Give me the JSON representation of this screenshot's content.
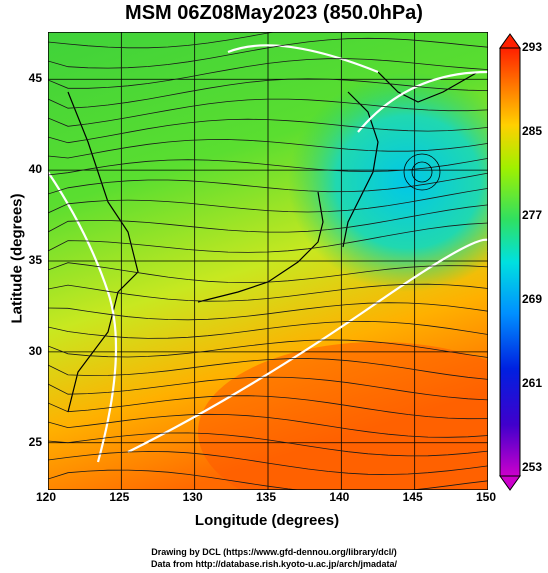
{
  "title": "MSM 06Z08May2023 (850.0hPa)",
  "x_axis": {
    "label": "Longitude (degrees)",
    "ticks": [
      "120",
      "125",
      "130",
      "135",
      "140",
      "145",
      "150"
    ],
    "range": [
      120,
      150
    ]
  },
  "y_axis": {
    "label": "Latitude  (degrees)",
    "ticks": [
      "25",
      "30",
      "35",
      "40",
      "45"
    ],
    "range": [
      22.4,
      47.6
    ]
  },
  "colorbar": {
    "ticks": [
      "293",
      "285",
      "277",
      "269",
      "261",
      "253"
    ],
    "range": [
      253,
      293
    ],
    "colors": [
      "#cc00cc",
      "#0000cc",
      "#0080ff",
      "#00e0e0",
      "#40e040",
      "#c0f000",
      "#ffc000",
      "#ff6a00",
      "#ff2000"
    ]
  },
  "credits": {
    "line1": "Drawing by DCL (https://www.gfd-dennou.org/library/dcl/)",
    "line2": "Data from http://database.rish.kyoto-u.ac.jp/arch/jmadata/"
  }
}
